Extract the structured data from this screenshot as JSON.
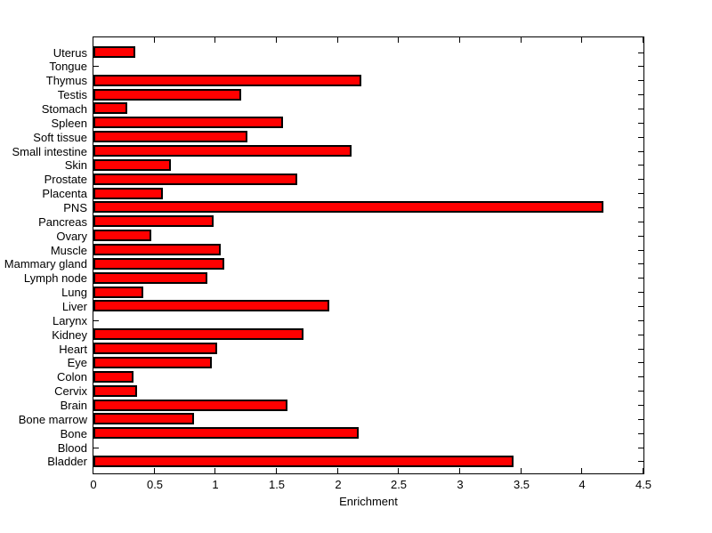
{
  "figure": {
    "background": "#ffffff"
  },
  "chart_data": {
    "type": "bar",
    "orientation": "horizontal",
    "xlabel": "Enrichment",
    "categories": [
      "Uterus",
      "Tongue",
      "Thymus",
      "Testis",
      "Stomach",
      "Spleen",
      "Soft tissue",
      "Small intestine",
      "Skin",
      "Prostate",
      "Placenta",
      "PNS",
      "Pancreas",
      "Ovary",
      "Muscle",
      "Mammary gland",
      "Lymph node",
      "Lung",
      "Liver",
      "Larynx",
      "Kidney",
      "Heart",
      "Eye",
      "Colon",
      "Cervix",
      "Brain",
      "Bone marrow",
      "Bone",
      "Blood",
      "Bladder"
    ],
    "values": [
      0.34,
      0,
      2.19,
      1.21,
      0.28,
      1.55,
      1.26,
      2.11,
      0.63,
      1.67,
      0.57,
      4.17,
      0.98,
      0.47,
      1.04,
      1.07,
      0.93,
      0.41,
      1.93,
      0,
      1.72,
      1.01,
      0.97,
      0.33,
      0.36,
      1.59,
      0.82,
      2.17,
      0,
      3.44
    ],
    "xlim": [
      0,
      4.5
    ],
    "x_ticks": [
      0,
      0.5,
      1,
      1.5,
      2,
      2.5,
      3,
      3.5,
      4,
      4.5
    ],
    "x_tick_labels": [
      "0",
      "0.5",
      "1",
      "1.5",
      "2",
      "2.5",
      "3",
      "3.5",
      "4",
      "4.5"
    ],
    "grid": false,
    "bar_color": "#ff0000",
    "bar_edge_color": "#000000",
    "axis_color": "#000000"
  }
}
